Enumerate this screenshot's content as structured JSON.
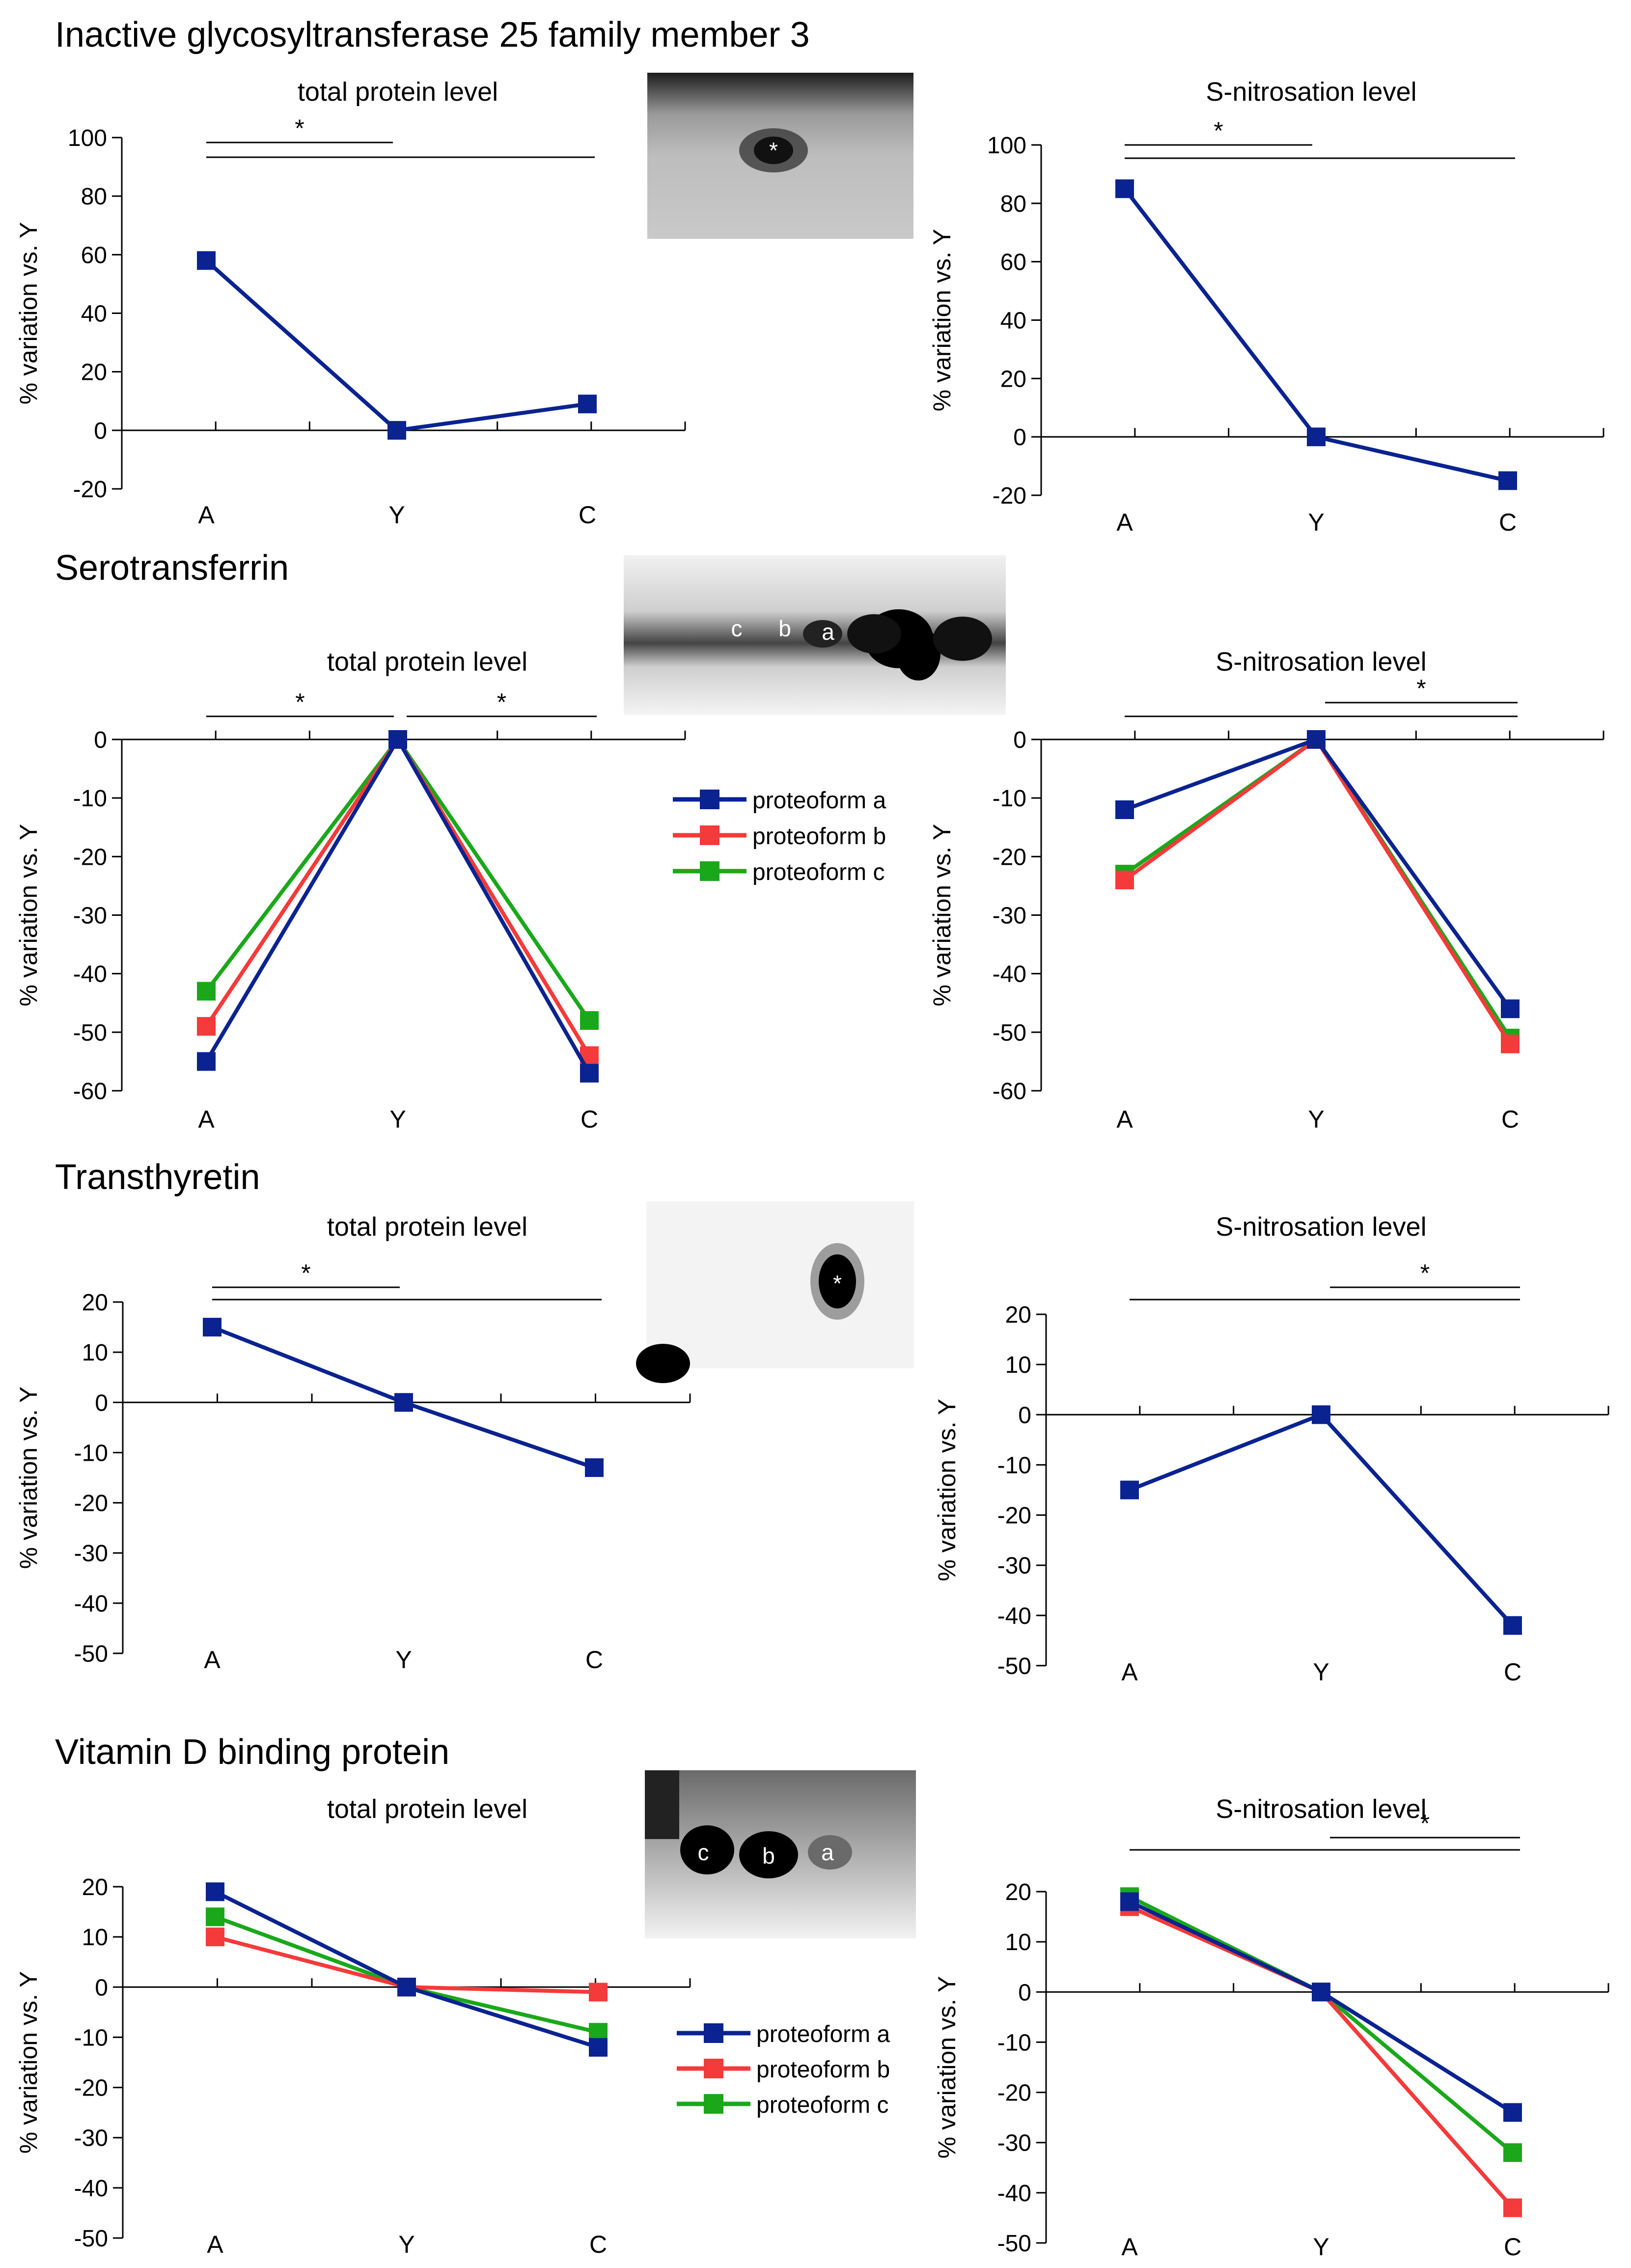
{
  "sections": [
    {
      "title": "Inactive glycosyltransferase 25 family member 3"
    },
    {
      "title": "Serotransferrin"
    },
    {
      "title": "Transthyretin"
    },
    {
      "title": "Vitamin D binding protein"
    }
  ],
  "blots": [
    {
      "labels": [
        "*"
      ]
    },
    {
      "labels": [
        "c",
        "b",
        "a"
      ]
    },
    {
      "labels": [
        "*"
      ]
    },
    {
      "labels": [
        "c",
        "b",
        "a"
      ]
    }
  ],
  "legend_top": {
    "entries": [
      "proteoform a",
      "proteoform b",
      "proteoform c"
    ]
  },
  "legend_bottom": {
    "entries": [
      "proteoform a",
      "proteoform b",
      "proteoform c"
    ]
  },
  "colors": {
    "proteoform_a": "#0a2390",
    "proteoform_b": "#f43a3a",
    "proteoform_c": "#1aa81a",
    "single": "#0a2390"
  },
  "chart_data": [
    {
      "id": "p1-total",
      "type": "line",
      "title": "total protein level",
      "ylabel": "% variation vs. Y",
      "categories": [
        "A",
        "Y",
        "C"
      ],
      "ylim": [
        -20,
        100
      ],
      "yticks": [
        -20,
        0,
        20,
        40,
        60,
        80,
        100
      ],
      "yticklabels": [
        "-20",
        "0",
        "20",
        "40",
        "60",
        "80",
        "100"
      ],
      "series": [
        {
          "name": "",
          "values": [
            58,
            0,
            9
          ]
        }
      ],
      "significance": [
        {
          "from": "A",
          "to": "Y",
          "label": "*"
        },
        {
          "from": "A",
          "to": "C",
          "label": ""
        }
      ]
    },
    {
      "id": "p1-snitro",
      "type": "line",
      "title": "S-nitrosation level",
      "ylabel": "% variation vs. Y",
      "categories": [
        "A",
        "Y",
        "C"
      ],
      "ylim": [
        -20,
        100
      ],
      "yticks": [
        -20,
        0,
        20,
        40,
        60,
        80,
        100
      ],
      "yticklabels": [
        "-20",
        "0",
        "20",
        "40",
        "60",
        "80",
        "100"
      ],
      "series": [
        {
          "name": "",
          "values": [
            85,
            0,
            -15
          ]
        }
      ],
      "significance": [
        {
          "from": "A",
          "to": "Y",
          "label": "*"
        },
        {
          "from": "A",
          "to": "C",
          "label": ""
        }
      ]
    },
    {
      "id": "p2-total",
      "type": "line",
      "title": "total protein level",
      "ylabel": "% variation vs. Y",
      "categories": [
        "A",
        "Y",
        "C"
      ],
      "ylim": [
        -60,
        0
      ],
      "yticks": [
        -60,
        -50,
        -40,
        -30,
        -20,
        -10,
        0
      ],
      "yticklabels": [
        "-60",
        "-50",
        "-40",
        "-30",
        "-20",
        "-10",
        "0"
      ],
      "series": [
        {
          "name": "proteoform a",
          "values": [
            -55,
            0,
            -57
          ]
        },
        {
          "name": "proteoform b",
          "values": [
            -49,
            0,
            -54
          ]
        },
        {
          "name": "proteoform c",
          "values": [
            -43,
            0,
            -48
          ]
        }
      ],
      "significance": [
        {
          "from": "A",
          "to": "Y",
          "label": "*"
        },
        {
          "from": "Y",
          "to": "C",
          "label": "*"
        }
      ]
    },
    {
      "id": "p2-snitro",
      "type": "line",
      "title": "S-nitrosation level",
      "ylabel": "% variation vs. Y",
      "categories": [
        "A",
        "Y",
        "C"
      ],
      "ylim": [
        -60,
        0
      ],
      "yticks": [
        -60,
        -50,
        -40,
        -30,
        -20,
        -10,
        0
      ],
      "yticklabels": [
        "-60",
        "-50",
        "-40",
        "-30",
        "-20",
        "-10",
        "0"
      ],
      "series": [
        {
          "name": "proteoform a",
          "values": [
            -12,
            0,
            -46
          ]
        },
        {
          "name": "proteoform b",
          "values": [
            -24,
            0,
            -52
          ]
        },
        {
          "name": "proteoform c",
          "values": [
            -23,
            0,
            -51
          ]
        }
      ],
      "significance": [
        {
          "from": "Y",
          "to": "C",
          "label": "*"
        },
        {
          "from": "A",
          "to": "C",
          "label": ""
        }
      ]
    },
    {
      "id": "p3-total",
      "type": "line",
      "title": "total protein level",
      "ylabel": "% variation vs. Y",
      "categories": [
        "A",
        "Y",
        "C"
      ],
      "ylim": [
        -50,
        20
      ],
      "yticks": [
        -50,
        -40,
        -30,
        -20,
        -10,
        0,
        10,
        20
      ],
      "yticklabels": [
        "-50",
        "-40",
        "-30",
        "-20",
        "-10",
        "0",
        "10",
        "20"
      ],
      "series": [
        {
          "name": "",
          "values": [
            15,
            0,
            -13
          ]
        }
      ],
      "significance": [
        {
          "from": "A",
          "to": "Y",
          "label": "*"
        },
        {
          "from": "A",
          "to": "C",
          "label": ""
        }
      ]
    },
    {
      "id": "p3-snitro",
      "type": "line",
      "title": "S-nitrosation level",
      "ylabel": "% variation vs. Y",
      "categories": [
        "A",
        "Y",
        "C"
      ],
      "ylim": [
        -50,
        20
      ],
      "yticks": [
        -50,
        -40,
        -30,
        -20,
        -10,
        0,
        10,
        20
      ],
      "yticklabels": [
        "-50",
        "-40",
        "-30",
        "-20",
        "-10",
        "0",
        "10",
        "20"
      ],
      "series": [
        {
          "name": "",
          "values": [
            -15,
            0,
            -42
          ]
        }
      ],
      "significance": [
        {
          "from": "Y",
          "to": "C",
          "label": "*"
        },
        {
          "from": "A",
          "to": "C",
          "label": ""
        }
      ]
    },
    {
      "id": "p4-total",
      "type": "line",
      "title": "total protein level",
      "ylabel": "% variation vs. Y",
      "categories": [
        "A",
        "Y",
        "C"
      ],
      "ylim": [
        -50,
        20
      ],
      "yticks": [
        -50,
        -40,
        -30,
        -20,
        -10,
        0,
        10,
        20
      ],
      "yticklabels": [
        "-50",
        "-40",
        "-30",
        "-20",
        "-10",
        "0",
        "10",
        "20"
      ],
      "series": [
        {
          "name": "proteoform a",
          "values": [
            19,
            0,
            -12
          ]
        },
        {
          "name": "proteoform b",
          "values": [
            10,
            0,
            -1
          ]
        },
        {
          "name": "proteoform c",
          "values": [
            14,
            0,
            -9
          ]
        }
      ],
      "significance": []
    },
    {
      "id": "p4-snitro",
      "type": "line",
      "title": "S-nitrosation level",
      "ylabel": "% variation vs. Y",
      "categories": [
        "A",
        "Y",
        "C"
      ],
      "ylim": [
        -50,
        20
      ],
      "yticks": [
        -50,
        -40,
        -30,
        -20,
        -10,
        0,
        10,
        20
      ],
      "yticklabels": [
        "-50",
        "-40",
        "-30",
        "-20",
        "-10",
        "0",
        "10",
        "20"
      ],
      "series": [
        {
          "name": "proteoform a",
          "values": [
            18,
            0,
            -24
          ]
        },
        {
          "name": "proteoform b",
          "values": [
            17,
            0,
            -43
          ]
        },
        {
          "name": "proteoform c",
          "values": [
            19,
            0,
            -32
          ]
        }
      ],
      "significance": [
        {
          "from": "Y",
          "to": "C",
          "label": "*"
        },
        {
          "from": "A",
          "to": "C",
          "label": ""
        }
      ]
    }
  ]
}
